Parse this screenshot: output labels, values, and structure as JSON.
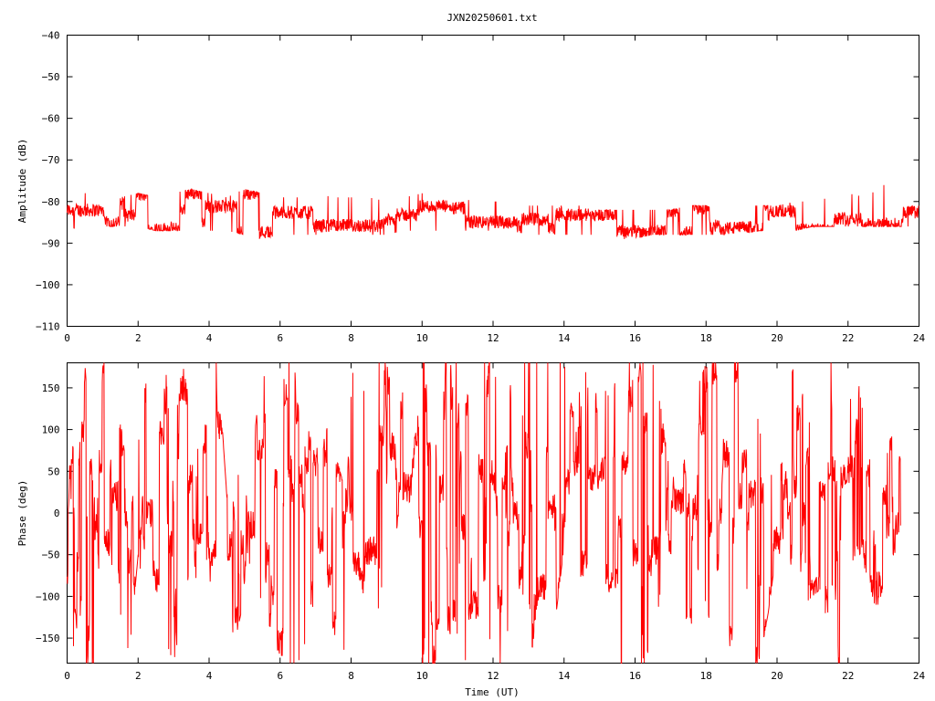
{
  "title": "JXN20250601.txt",
  "trace_color": "#ff0000",
  "chart_data": [
    {
      "type": "line",
      "name": "amplitude",
      "title": "JXN20250601.txt",
      "xlabel": "",
      "ylabel": "Amplitude (dB)",
      "xlim": [
        0,
        24
      ],
      "ylim": [
        -110,
        -40
      ],
      "xticks": [
        "0",
        "2",
        "4",
        "6",
        "8",
        "10",
        "12",
        "14",
        "16",
        "18",
        "20",
        "22",
        "24"
      ],
      "yticks": [
        "-40",
        "-50",
        "-60",
        "-70",
        "-80",
        "-90",
        "-100",
        "-110"
      ],
      "grid": false,
      "series": [
        {
          "color": "#ff0000",
          "x": [
            0,
            0.5,
            1,
            1.5,
            2,
            2.5,
            3,
            3.5,
            4,
            4.5,
            5,
            5.5,
            6,
            6.5,
            7,
            7.5,
            8,
            8.5,
            9,
            9.5,
            10,
            10.5,
            11,
            11.5,
            12,
            12.5,
            13,
            13.5,
            14,
            14.5,
            15,
            15.5,
            16,
            16.5,
            17,
            17.5,
            18,
            18.5,
            19,
            19.5,
            20,
            20.5,
            21,
            21.5,
            22,
            22.5,
            23,
            23.5,
            24
          ],
          "y_min": [
            -86,
            -87,
            -86,
            -86,
            -86,
            -87,
            -87,
            -87,
            -87,
            -87,
            -88,
            -89,
            -88,
            -88,
            -88,
            -87,
            -87,
            -88,
            -88,
            -87,
            -87,
            -87,
            -87,
            -87,
            -87,
            -87,
            -88,
            -88,
            -88,
            -88,
            -88,
            -89,
            -89,
            -88,
            -88,
            -88,
            -88,
            -88,
            -88,
            -87,
            -87,
            -87,
            -86,
            -86,
            -86,
            -86,
            -86,
            -86,
            -86
          ],
          "y_max": [
            -80,
            -78,
            -77,
            -79,
            -78,
            -79,
            -78,
            -77,
            -78,
            -79,
            -77,
            -78,
            -79,
            -79,
            -78,
            -79,
            -79,
            -79,
            -80,
            -79,
            -78,
            -79,
            -79,
            -80,
            -80,
            -80,
            -81,
            -81,
            -81,
            -81,
            -82,
            -82,
            -82,
            -82,
            -82,
            -81,
            -81,
            -82,
            -81,
            -81,
            -81,
            -80,
            -80,
            -79,
            -78,
            -79,
            -76,
            -79,
            -79
          ]
        }
      ]
    },
    {
      "type": "line",
      "name": "phase",
      "title": "",
      "xlabel": "Time (UT)",
      "ylabel": "Phase (deg)",
      "xlim": [
        0,
        24
      ],
      "ylim": [
        -180,
        180
      ],
      "xticks": [
        "0",
        "2",
        "4",
        "6",
        "8",
        "10",
        "12",
        "14",
        "16",
        "18",
        "20",
        "22",
        "24"
      ],
      "yticks": [
        "150",
        "100",
        "50",
        "0",
        "-50",
        "-100",
        "-150"
      ],
      "grid": false,
      "series": [
        {
          "color": "#ff0000",
          "x": [
            0,
            0.25,
            0.5,
            0.75,
            1,
            1.25,
            1.5,
            1.75,
            2,
            2.25,
            2.5,
            2.75,
            3,
            3.25,
            3.5,
            3.75,
            4,
            4.25,
            4.5,
            4.75,
            5,
            5.25,
            5.5,
            5.75,
            6,
            6.25,
            6.5,
            6.75,
            7,
            7.25,
            7.5,
            7.75,
            8,
            8.25,
            8.5,
            8.75,
            9,
            9.25,
            9.5,
            9.75,
            10,
            10.25,
            10.5,
            10.75,
            11,
            11.25,
            11.5,
            11.75,
            12,
            12.25,
            12.5,
            12.75,
            13,
            13.25,
            13.5,
            13.75,
            14,
            14.25,
            14.5,
            14.75,
            15,
            15.25,
            15.5,
            15.75,
            16,
            16.25,
            16.5,
            16.75,
            17,
            17.25,
            17.5,
            17.75,
            18,
            18.25,
            18.5,
            18.75,
            19,
            19.25,
            19.5,
            19.75,
            20,
            20.25,
            20.5,
            20.75,
            21,
            21.25,
            21.5,
            21.75,
            22,
            22.25,
            22.5,
            22.75,
            23,
            23.25,
            23.5,
            23.75,
            24
          ],
          "y_min": [
            -120,
            -175,
            -180,
            -180,
            -30,
            -60,
            -120,
            -170,
            -50,
            -120,
            -180,
            -150,
            -180,
            -120,
            -180,
            -160,
            -80,
            -100,
            -180,
            -150,
            -100,
            -30,
            -120,
            -140,
            -180,
            -180,
            -180,
            -150,
            -100,
            -120,
            -180,
            -180,
            -100,
            -180,
            -150,
            -120,
            -50,
            -20,
            -80,
            -100,
            -180,
            -180,
            -180,
            -170,
            -150,
            -180,
            -180,
            -100,
            -180,
            -180,
            -120,
            -150,
            -180,
            -160,
            -180,
            -130,
            -40,
            -50,
            -80,
            -100,
            -150,
            -180,
            -180,
            -180,
            -180,
            -180,
            -170,
            -80,
            -100,
            -150,
            -180,
            -170,
            -100,
            -180,
            -180,
            -150,
            -60,
            -180,
            -180,
            -120,
            -40,
            -80,
            -100,
            -110,
            -100,
            -90,
            -180,
            -180,
            -150,
            -40,
            -70,
            -110,
            -110,
            -100,
            -40
          ],
          "y_max": [
            80,
            120,
            180,
            20,
            180,
            180,
            110,
            30,
            80,
            180,
            180,
            180,
            90,
            180,
            120,
            60,
            180,
            180,
            20,
            40,
            60,
            120,
            180,
            100,
            180,
            180,
            180,
            160,
            60,
            180,
            80,
            40,
            180,
            120,
            180,
            180,
            180,
            120,
            180,
            180,
            180,
            180,
            180,
            180,
            180,
            140,
            160,
            180,
            180,
            120,
            180,
            180,
            180,
            180,
            180,
            180,
            180,
            120,
            160,
            180,
            160,
            140,
            180,
            180,
            180,
            180,
            180,
            120,
            40,
            50,
            80,
            150,
            180,
            180,
            180,
            180,
            180,
            180,
            100,
            60,
            20,
            140,
            180,
            160,
            80,
            60,
            180,
            180,
            120,
            180,
            90,
            60,
            50,
            100,
            60
          ]
        }
      ]
    }
  ]
}
